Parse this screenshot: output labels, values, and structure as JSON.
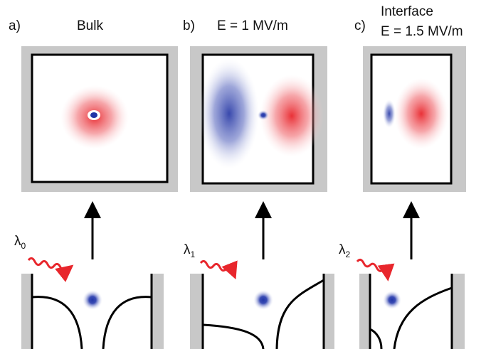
{
  "panels": [
    {
      "label": "a)",
      "title": "Bulk",
      "wavelength": {
        "symbol": "λ",
        "subscript": "0"
      }
    },
    {
      "label": "b)",
      "title": "E = 1 MV/m",
      "wavelength": {
        "symbol": "λ",
        "subscript": "1"
      }
    },
    {
      "label": "c)",
      "title": "Interface",
      "subtitle": "E = 1.5 MV/m",
      "wavelength": {
        "symbol": "λ",
        "subscript": "2"
      }
    }
  ]
}
